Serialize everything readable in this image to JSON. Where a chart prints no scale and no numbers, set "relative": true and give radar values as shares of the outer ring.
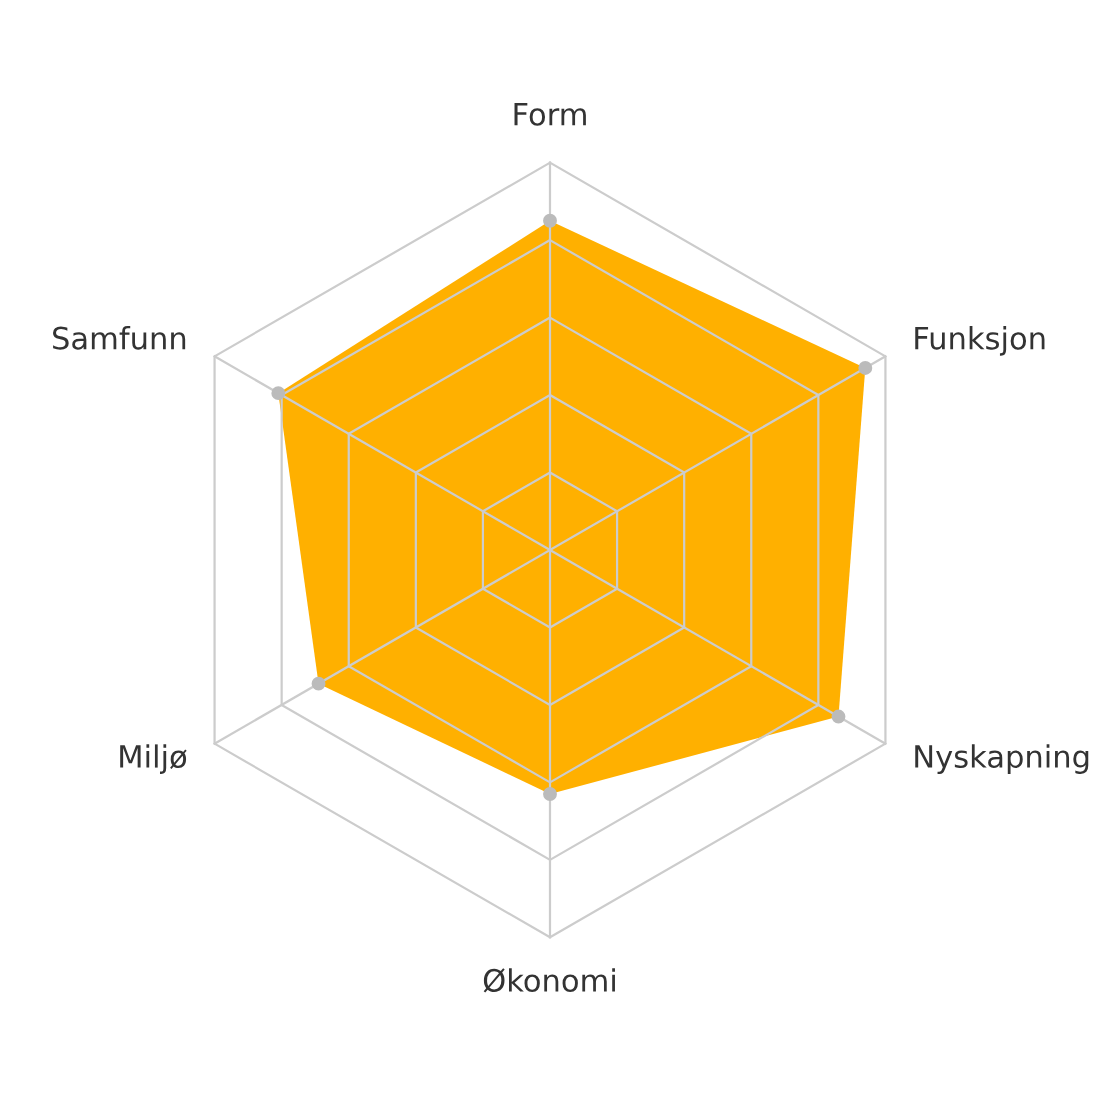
{
  "chart_data": {
    "type": "radar",
    "relative": true,
    "categories": [
      "Form",
      "Funksjon",
      "Nyskapning",
      "Økonomi",
      "Miljø",
      "Samfunn"
    ],
    "series": [
      {
        "color": "#ffb000",
        "values": [
          0.85,
          0.94,
          0.86,
          0.63,
          0.69,
          0.81
        ]
      }
    ],
    "grid": true,
    "marker": "circle"
  }
}
